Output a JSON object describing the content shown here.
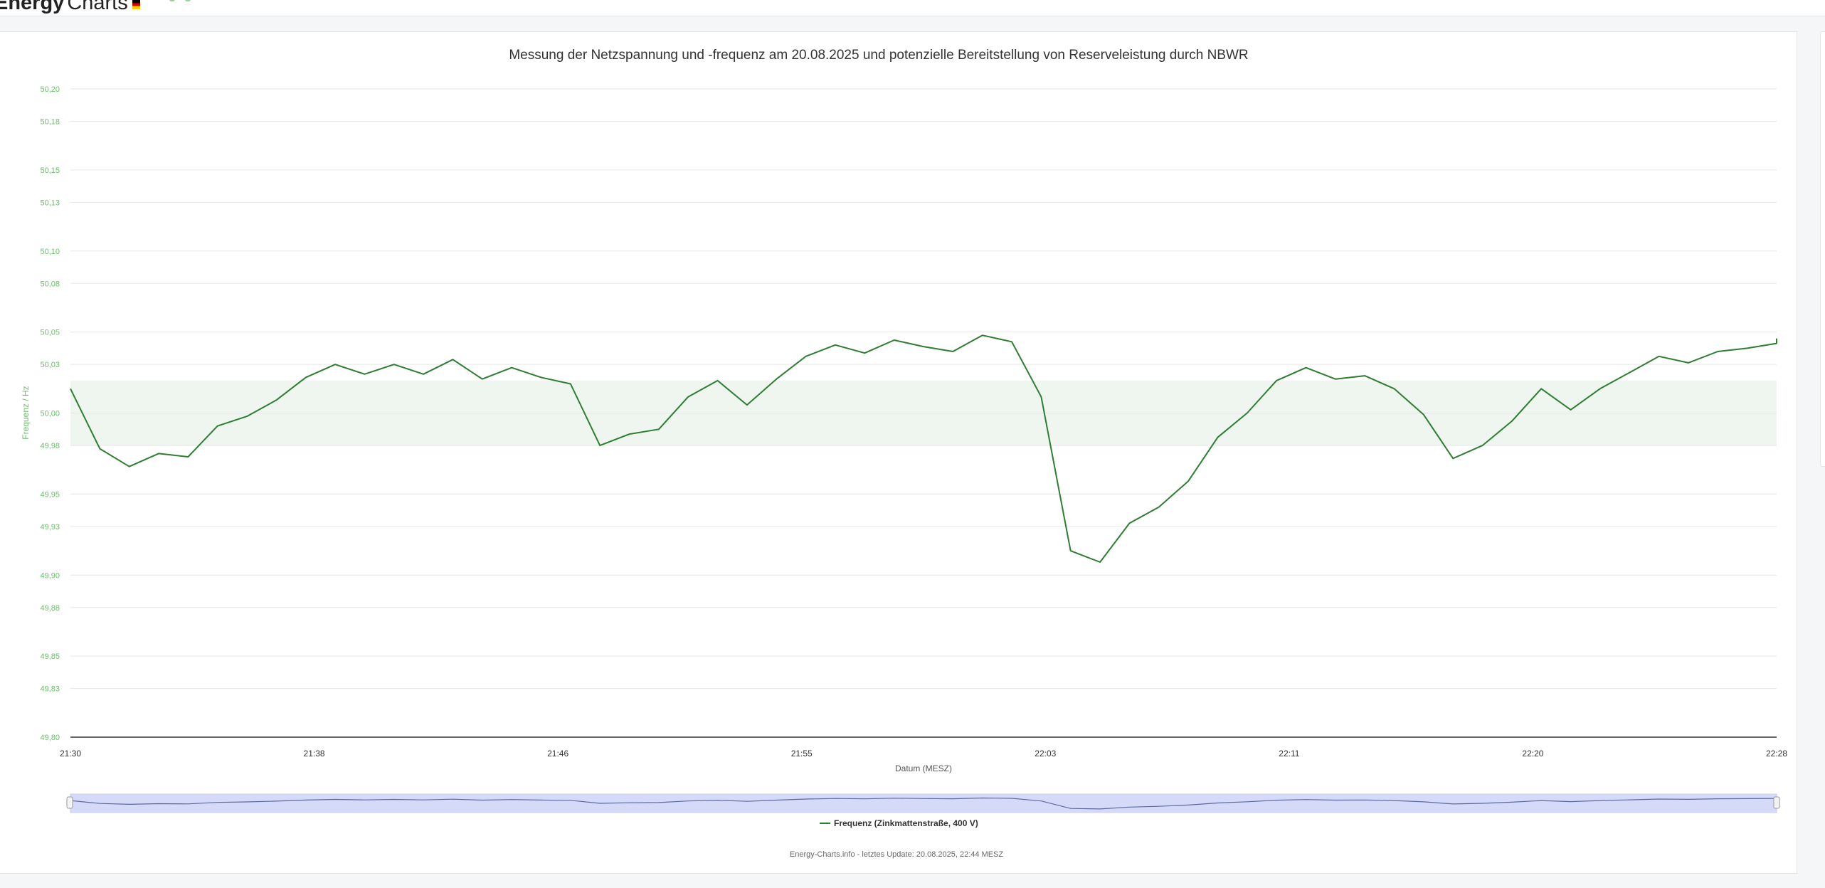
{
  "header": {
    "brand_bold": "Energy",
    "brand_light": "Charts",
    "flag_icon": "germany-flag-icon"
  },
  "colors": {
    "line": "#2e7d32",
    "axis_text": "#6abf69",
    "band_fill": "#eef6ef",
    "navigator_fill": "#cdd3f7"
  },
  "footer": {
    "credits": "Energy-Charts.info - letztes Update: 20.08.2025, 22:44 MESZ"
  },
  "chart_data": {
    "type": "line",
    "title": "Messung der Netzspannung und -frequenz am 20.08.2025 und potenzielle Bereitstellung von Reserveleistung durch NBWR",
    "xlabel": "Datum (MESZ)",
    "ylabel": "Frequenz / Hz",
    "ylim": [
      49.8,
      50.2
    ],
    "y_ticks": [
      "49,80",
      "49,83",
      "49,85",
      "49,88",
      "49,90",
      "49,93",
      "49,95",
      "49,98",
      "50,00",
      "50,03",
      "50,05",
      "50,08",
      "50,10",
      "50,13",
      "50,15",
      "50,18",
      "50,20"
    ],
    "x_ticks": [
      "21:30",
      "21:38",
      "21:46",
      "21:55",
      "22:03",
      "22:11",
      "22:20",
      "22:28"
    ],
    "xlim": [
      "21:30",
      "22:28"
    ],
    "band": [
      49.98,
      50.02
    ],
    "grid": true,
    "legend_position": "bottom-center",
    "series": [
      {
        "name": "Frequenz (Zinkmattenstraße, 400 V)",
        "points": [
          [
            "21:30",
            50.015
          ],
          [
            "21:31",
            49.978
          ],
          [
            "21:32",
            49.967
          ],
          [
            "21:33",
            49.975
          ],
          [
            "21:34",
            49.973
          ],
          [
            "21:35",
            49.992
          ],
          [
            "21:36",
            49.998
          ],
          [
            "21:37",
            50.008
          ],
          [
            "21:38",
            50.022
          ],
          [
            "21:39",
            50.03
          ],
          [
            "21:40",
            50.024
          ],
          [
            "21:41",
            50.03
          ],
          [
            "21:42",
            50.024
          ],
          [
            "21:43",
            50.033
          ],
          [
            "21:44",
            50.021
          ],
          [
            "21:45",
            50.028
          ],
          [
            "21:46",
            50.022
          ],
          [
            "21:47",
            50.018
          ],
          [
            "21:48",
            49.98
          ],
          [
            "21:49",
            49.987
          ],
          [
            "21:50",
            49.99
          ],
          [
            "21:51",
            50.01
          ],
          [
            "21:52",
            50.02
          ],
          [
            "21:53",
            50.005
          ],
          [
            "21:54",
            50.021
          ],
          [
            "21:55",
            50.035
          ],
          [
            "21:56",
            50.042
          ],
          [
            "21:57",
            50.037
          ],
          [
            "21:58",
            50.045
          ],
          [
            "21:59",
            50.041
          ],
          [
            "22:00",
            50.038
          ],
          [
            "22:01",
            50.048
          ],
          [
            "22:02",
            50.044
          ],
          [
            "22:03",
            50.01
          ],
          [
            "22:04",
            49.915
          ],
          [
            "22:05",
            49.908
          ],
          [
            "22:06",
            49.932
          ],
          [
            "22:07",
            49.942
          ],
          [
            "22:08",
            49.958
          ],
          [
            "22:09",
            49.985
          ],
          [
            "22:10",
            50.0
          ],
          [
            "22:11",
            50.02
          ],
          [
            "22:12",
            50.028
          ],
          [
            "22:13",
            50.021
          ],
          [
            "22:14",
            50.023
          ],
          [
            "22:15",
            50.015
          ],
          [
            "22:16",
            49.999
          ],
          [
            "22:17",
            49.972
          ],
          [
            "22:18",
            49.98
          ],
          [
            "22:19",
            49.995
          ],
          [
            "22:20",
            50.015
          ],
          [
            "22:21",
            50.002
          ],
          [
            "22:22",
            50.015
          ],
          [
            "22:23",
            50.025
          ],
          [
            "22:24",
            50.035
          ],
          [
            "22:25",
            50.031
          ],
          [
            "22:26",
            50.038
          ],
          [
            "22:27",
            50.04
          ],
          [
            "22:28",
            50.043
          ],
          [
            "22:29",
            50.046
          ]
        ]
      }
    ]
  }
}
